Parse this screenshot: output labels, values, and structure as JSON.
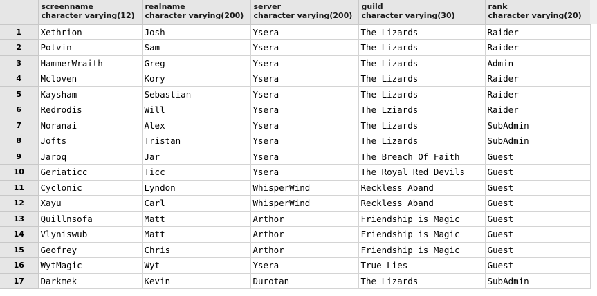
{
  "columns": [
    {
      "name": "screenname",
      "type": "character varying(12)"
    },
    {
      "name": "realname",
      "type": "character varying(200)"
    },
    {
      "name": "server",
      "type": "character varying(200)"
    },
    {
      "name": "guild",
      "type": "character varying(30)"
    },
    {
      "name": "rank",
      "type": "character varying(20)"
    }
  ],
  "rows": [
    {
      "num": "1",
      "cells": [
        "Xethrion",
        "Josh",
        "Ysera",
        "The Lizards",
        "Raider"
      ]
    },
    {
      "num": "2",
      "cells": [
        "Potvin",
        "Sam",
        "Ysera",
        "The Lizards",
        "Raider"
      ]
    },
    {
      "num": "3",
      "cells": [
        "HammerWraith",
        "Greg",
        "Ysera",
        "The Lizards",
        "Admin"
      ]
    },
    {
      "num": "4",
      "cells": [
        "Mcloven",
        "Kory",
        "Ysera",
        "The Lizards",
        "Raider"
      ]
    },
    {
      "num": "5",
      "cells": [
        "Kaysham",
        "Sebastian",
        "Ysera",
        "The Lizards",
        "Raider"
      ]
    },
    {
      "num": "6",
      "cells": [
        "Redrodis",
        "Will",
        "Ysera",
        "The Lziards",
        "Raider"
      ]
    },
    {
      "num": "7",
      "cells": [
        "Noranai",
        "Alex",
        "Ysera",
        "The Lizards",
        "SubAdmin"
      ]
    },
    {
      "num": "8",
      "cells": [
        "Jofts",
        "Tristan",
        "Ysera",
        "The Lizards",
        "SubAdmin"
      ]
    },
    {
      "num": "9",
      "cells": [
        "Jaroq",
        "Jar",
        "Ysera",
        "The Breach Of Faith",
        "Guest"
      ]
    },
    {
      "num": "10",
      "cells": [
        "Geriaticc",
        "Ticc",
        "Ysera",
        "The Royal Red Devils",
        "Guest"
      ]
    },
    {
      "num": "11",
      "cells": [
        "Cyclonic",
        "Lyndon",
        "WhisperWind",
        "Reckless Aband",
        "Guest"
      ]
    },
    {
      "num": "12",
      "cells": [
        "Xayu",
        "Carl",
        "WhisperWind",
        "Reckless Aband",
        "Guest"
      ]
    },
    {
      "num": "13",
      "cells": [
        "Quillnsofa",
        "Matt",
        "Arthor",
        "Friendship is Magic",
        "Guest"
      ]
    },
    {
      "num": "14",
      "cells": [
        "Vlyniswub",
        "Matt",
        "Arthor",
        "Friendship is Magic",
        "Guest"
      ]
    },
    {
      "num": "15",
      "cells": [
        "Geofrey",
        "Chris",
        "Arthor",
        "Friendship is Magic",
        "Guest"
      ]
    },
    {
      "num": "16",
      "cells": [
        "WytMagic",
        "Wyt",
        "Ysera",
        "True Lies",
        "Guest"
      ]
    },
    {
      "num": "17",
      "cells": [
        "Darkmek",
        "Kevin",
        "Durotan",
        "The Lizards",
        "SubAdmin"
      ]
    }
  ]
}
